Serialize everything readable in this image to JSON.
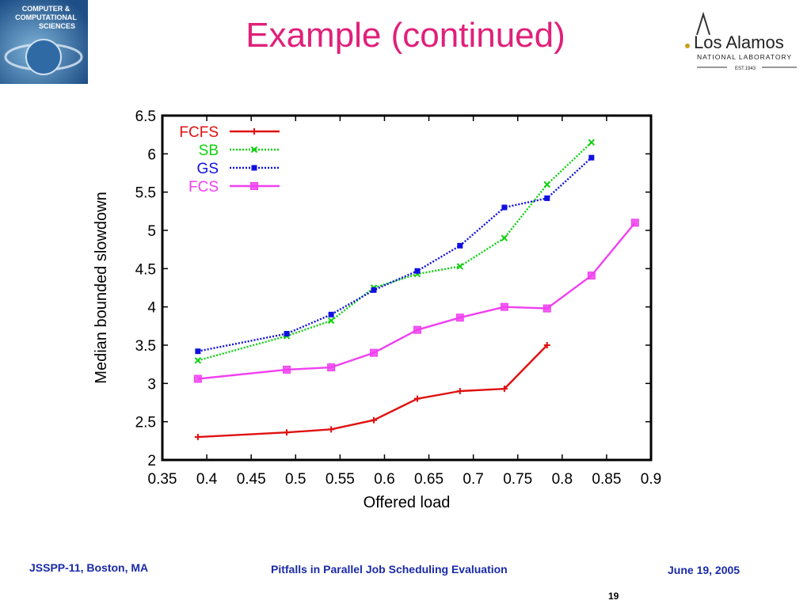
{
  "header": {
    "title": "Example (continued)",
    "logo_left_text": [
      "COMPUTER &",
      "COMPUTATIONAL",
      "SCIENCES"
    ],
    "logo_right": {
      "name": "Los Alamos",
      "sub": "NATIONAL LABORATORY",
      "est": "EST.1943"
    }
  },
  "footer": {
    "left": "JSSPP-11, Boston, MA",
    "center": "Pitfalls in Parallel Job Scheduling Evaluation",
    "right": "June 19, 2005",
    "page": "19"
  },
  "colors": {
    "title": "#e0207a",
    "footer": "#1a2aa8"
  },
  "chart_data": {
    "type": "line",
    "xlabel": "Offered load",
    "ylabel": "Median bounded slowdown",
    "xlim": [
      0.35,
      0.9
    ],
    "ylim": [
      2,
      6.5
    ],
    "xticks": [
      "0.35",
      "0.4",
      "0.45",
      "0.5",
      "0.55",
      "0.6",
      "0.65",
      "0.7",
      "0.75",
      "0.8",
      "0.85",
      "0.9"
    ],
    "yticks": [
      "2",
      "2.5",
      "3",
      "3.5",
      "4",
      "4.5",
      "5",
      "5.5",
      "6",
      "6.5"
    ],
    "grid": false,
    "legend_position": "top-left",
    "series": [
      {
        "name": "FCFS",
        "color": "#e01010",
        "dash": "solid",
        "marker": "plus",
        "x": [
          0.39,
          0.49,
          0.54,
          0.588,
          0.637,
          0.685,
          0.735,
          0.783
        ],
        "y": [
          2.3,
          2.36,
          2.4,
          2.52,
          2.8,
          2.9,
          2.93,
          3.5
        ]
      },
      {
        "name": "SB",
        "color": "#10d010",
        "dash": "dotted",
        "marker": "x",
        "x": [
          0.39,
          0.49,
          0.54,
          0.588,
          0.637,
          0.685,
          0.735,
          0.783,
          0.833
        ],
        "y": [
          3.3,
          3.62,
          3.82,
          4.25,
          4.43,
          4.53,
          4.9,
          5.6,
          6.15
        ]
      },
      {
        "name": "GS",
        "color": "#1010e0",
        "dash": "dotted",
        "marker": "square-filled",
        "x": [
          0.39,
          0.49,
          0.54,
          0.588,
          0.637,
          0.685,
          0.735,
          0.783,
          0.833
        ],
        "y": [
          3.42,
          3.65,
          3.9,
          4.22,
          4.47,
          4.8,
          5.3,
          5.42,
          5.95
        ]
      },
      {
        "name": "FCS",
        "color": "#f040f0",
        "dash": "solid",
        "marker": "square",
        "x": [
          0.39,
          0.49,
          0.54,
          0.588,
          0.637,
          0.685,
          0.735,
          0.783,
          0.833,
          0.882
        ],
        "y": [
          3.06,
          3.18,
          3.21,
          3.4,
          3.7,
          3.86,
          4.0,
          3.98,
          4.41,
          5.1
        ]
      }
    ]
  }
}
